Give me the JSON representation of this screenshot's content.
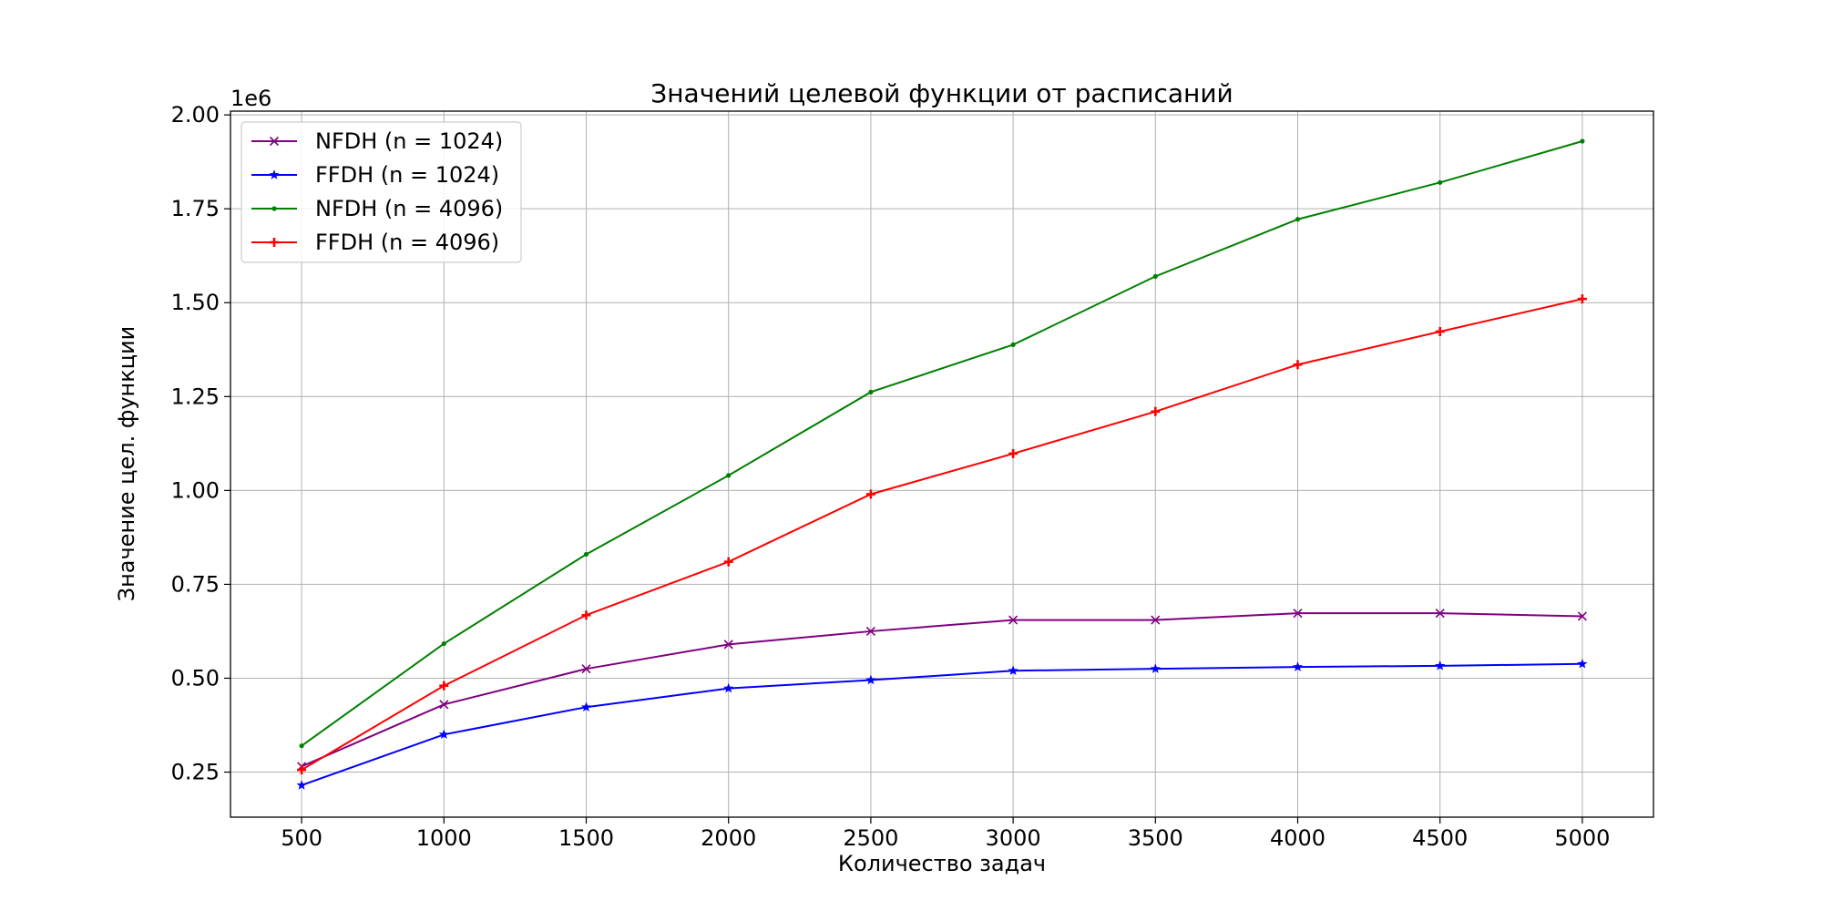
{
  "chart_data": {
    "type": "line",
    "title": "Значений целевой функции от расписаний",
    "xlabel": "Количество задач",
    "ylabel": "Значение цел. функции",
    "y_offset_label": "1e6",
    "x": [
      500,
      1000,
      1500,
      2000,
      2500,
      3000,
      3500,
      4000,
      4500,
      5000
    ],
    "xlim": [
      250,
      5250
    ],
    "ylim": [
      0.13,
      2.01
    ],
    "x_ticks": [
      500,
      1000,
      1500,
      2000,
      2500,
      3000,
      3500,
      4000,
      4500,
      5000
    ],
    "x_tick_labels": [
      "500",
      "1000",
      "1500",
      "2000",
      "2500",
      "3000",
      "3500",
      "4000",
      "4500",
      "5000"
    ],
    "y_ticks": [
      0.25,
      0.5,
      0.75,
      1.0,
      1.25,
      1.5,
      1.75,
      2.0
    ],
    "y_tick_labels": [
      "0.25",
      "0.50",
      "0.75",
      "1.00",
      "1.25",
      "1.50",
      "1.75",
      "2.00"
    ],
    "grid": true,
    "legend_position": "top-left",
    "series": [
      {
        "name": "NFDH (n = 1024)",
        "color": "#800080",
        "marker": "x",
        "values": [
          0.265,
          0.43,
          0.525,
          0.59,
          0.625,
          0.655,
          0.655,
          0.673,
          0.673,
          0.665
        ]
      },
      {
        "name": "FFDH (n = 1024)",
        "color": "#0000ff",
        "marker": "star",
        "values": [
          0.215,
          0.35,
          0.423,
          0.473,
          0.495,
          0.52,
          0.525,
          0.53,
          0.533,
          0.538
        ]
      },
      {
        "name": "NFDH (n = 4096)",
        "color": "#008000",
        "marker": "point",
        "values": [
          0.32,
          0.592,
          0.83,
          1.04,
          1.262,
          1.388,
          1.57,
          1.722,
          1.82,
          1.93
        ]
      },
      {
        "name": "FFDH (n = 4096)",
        "color": "#ff0000",
        "marker": "plus",
        "values": [
          0.256,
          0.48,
          0.668,
          0.81,
          0.99,
          1.098,
          1.21,
          1.335,
          1.423,
          1.51
        ]
      }
    ]
  }
}
